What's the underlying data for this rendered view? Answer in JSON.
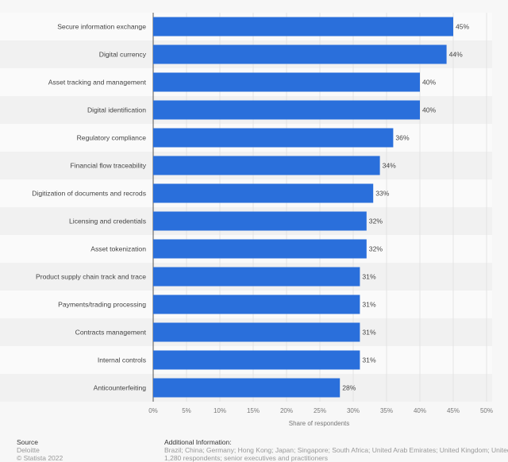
{
  "chart_data": {
    "type": "bar",
    "orientation": "horizontal",
    "categories": [
      "Secure information exchange",
      "Digital currency",
      "Asset tracking and management",
      "Digital identification",
      "Regulatory compliance",
      "Financial flow traceability",
      "Digitization of documents and recrods",
      "Licensing and credentials",
      "Asset tokenization",
      "Product supply chain track and trace",
      "Payments/trading processing",
      "Contracts management",
      "Internal controls",
      "Anticounterfeiting"
    ],
    "values": [
      45,
      44,
      40,
      40,
      36,
      34,
      33,
      32,
      32,
      31,
      31,
      31,
      31,
      28
    ],
    "data_labels": [
      "45%",
      "44%",
      "40%",
      "40%",
      "36%",
      "34%",
      "33%",
      "32%",
      "32%",
      "31%",
      "31%",
      "31%",
      "31%",
      "28%"
    ],
    "xlabel": "Share of respondents",
    "xlim": [
      0,
      50
    ],
    "xticks": [
      "0%",
      "5%",
      "10%",
      "15%",
      "20%",
      "25%",
      "30%",
      "35%",
      "40%",
      "45%",
      "50%"
    ],
    "bar_color": "#2a6fdb",
    "grid": true
  },
  "footer": {
    "source_title": "Source",
    "source": "Deloitte",
    "copyright": "© Statista 2022",
    "info_title": "Additional Information:",
    "info_line1": "Brazil; China; Germany; Hong Kong; Japan; Singapore; South Africa; United Arab Emirates; United Kingdom; United States",
    "info_line2": "1,280 respondents; senior executives and practitioners"
  }
}
